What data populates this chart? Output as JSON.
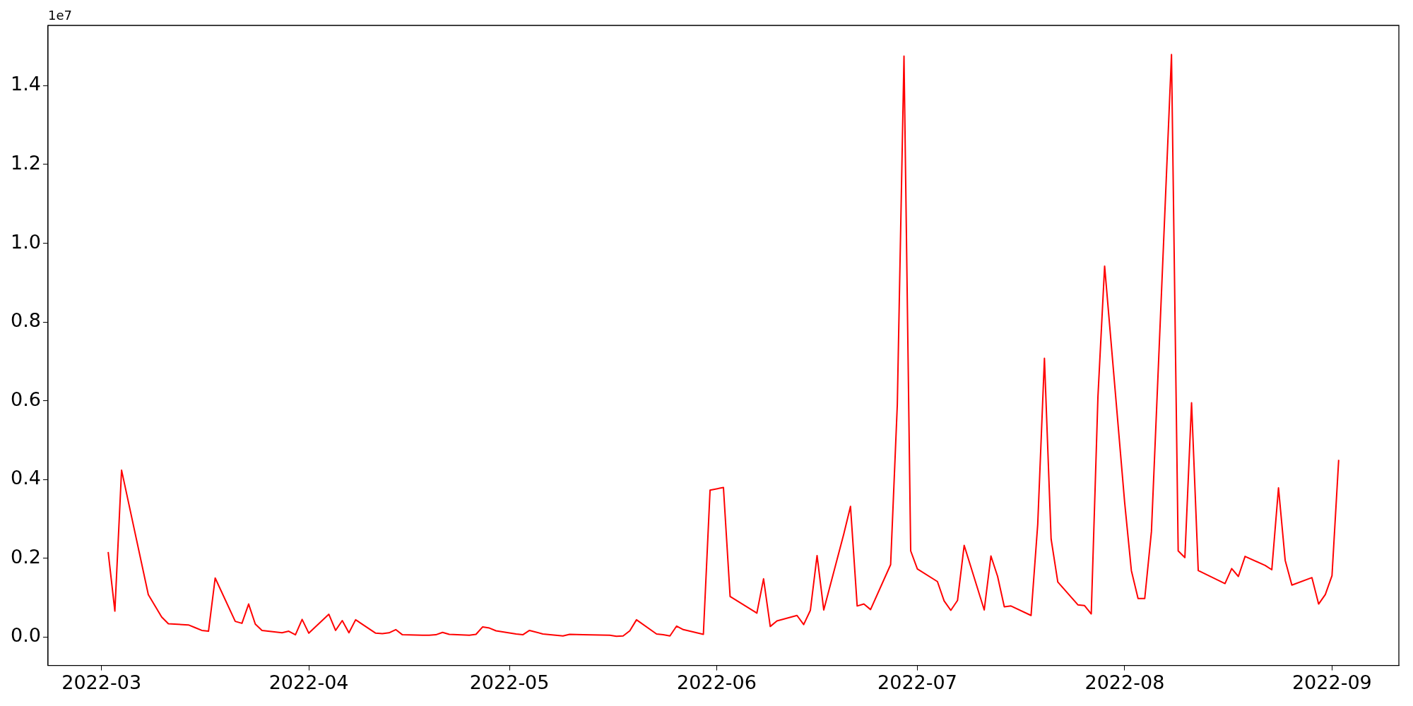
{
  "chart_data": {
    "type": "line",
    "x": [
      "2022-03-02",
      "2022-03-03",
      "2022-03-04",
      "2022-03-08",
      "2022-03-10",
      "2022-03-11",
      "2022-03-14",
      "2022-03-15",
      "2022-03-16",
      "2022-03-17",
      "2022-03-18",
      "2022-03-21",
      "2022-03-22",
      "2022-03-23",
      "2022-03-24",
      "2022-03-25",
      "2022-03-28",
      "2022-03-29",
      "2022-03-30",
      "2022-03-31",
      "2022-04-01",
      "2022-04-04",
      "2022-04-05",
      "2022-04-06",
      "2022-04-07",
      "2022-04-08",
      "2022-04-11",
      "2022-04-12",
      "2022-04-13",
      "2022-04-14",
      "2022-04-15",
      "2022-04-18",
      "2022-04-19",
      "2022-04-20",
      "2022-04-21",
      "2022-04-22",
      "2022-04-25",
      "2022-04-26",
      "2022-04-27",
      "2022-04-28",
      "2022-04-29",
      "2022-05-02",
      "2022-05-03",
      "2022-05-04",
      "2022-05-06",
      "2022-05-09",
      "2022-05-10",
      "2022-05-12",
      "2022-05-16",
      "2022-05-17",
      "2022-05-18",
      "2022-05-19",
      "2022-05-20",
      "2022-05-23",
      "2022-05-24",
      "2022-05-25",
      "2022-05-26",
      "2022-05-27",
      "2022-05-30",
      "2022-05-31",
      "2022-06-02",
      "2022-06-03",
      "2022-06-07",
      "2022-06-08",
      "2022-06-09",
      "2022-06-10",
      "2022-06-13",
      "2022-06-14",
      "2022-06-15",
      "2022-06-16",
      "2022-06-17",
      "2022-06-20",
      "2022-06-21",
      "2022-06-22",
      "2022-06-23",
      "2022-06-24",
      "2022-06-27",
      "2022-06-28",
      "2022-06-29",
      "2022-06-30",
      "2022-07-01",
      "2022-07-04",
      "2022-07-05",
      "2022-07-06",
      "2022-07-07",
      "2022-07-08",
      "2022-07-11",
      "2022-07-12",
      "2022-07-13",
      "2022-07-14",
      "2022-07-15",
      "2022-07-18",
      "2022-07-19",
      "2022-07-20",
      "2022-07-21",
      "2022-07-22",
      "2022-07-25",
      "2022-07-26",
      "2022-07-27",
      "2022-07-28",
      "2022-07-29",
      "2022-08-01",
      "2022-08-02",
      "2022-08-03",
      "2022-08-04",
      "2022-08-05",
      "2022-08-08",
      "2022-08-09",
      "2022-08-10",
      "2022-08-11",
      "2022-08-12",
      "2022-08-16",
      "2022-08-17",
      "2022-08-18",
      "2022-08-19",
      "2022-08-22",
      "2022-08-23",
      "2022-08-24",
      "2022-08-25",
      "2022-08-26",
      "2022-08-29",
      "2022-08-30",
      "2022-08-31",
      "2022-09-01",
      "2022-09-02"
    ],
    "series": [
      {
        "color": "#ff0000",
        "values": [
          0.216,
          0.066,
          0.424,
          0.108,
          0.051,
          0.034,
          0.031,
          0.024,
          0.017,
          0.015,
          0.15,
          0.04,
          0.035,
          0.084,
          0.033,
          0.017,
          0.011,
          0.015,
          0.006,
          0.045,
          0.01,
          0.058,
          0.017,
          0.042,
          0.011,
          0.044,
          0.01,
          0.009,
          0.011,
          0.019,
          0.006,
          0.005,
          0.005,
          0.006,
          0.012,
          0.007,
          0.005,
          0.007,
          0.026,
          0.023,
          0.016,
          0.008,
          0.006,
          0.017,
          0.008,
          0.003,
          0.007,
          0.006,
          0.005,
          0.002,
          0.003,
          0.016,
          0.044,
          0.008,
          0.006,
          0.003,
          0.028,
          0.019,
          0.007,
          0.373,
          0.38,
          0.103,
          0.061,
          0.148,
          0.027,
          0.041,
          0.055,
          0.032,
          0.068,
          0.207,
          0.069,
          0.262,
          0.332,
          0.079,
          0.084,
          0.07,
          0.184,
          0.59,
          1.475,
          0.219,
          0.173,
          0.141,
          0.092,
          0.068,
          0.093,
          0.233,
          0.069,
          0.206,
          0.154,
          0.077,
          0.079,
          0.055,
          0.287,
          0.708,
          0.249,
          0.14,
          0.082,
          0.08,
          0.059,
          0.61,
          0.942,
          0.341,
          0.169,
          0.098,
          0.098,
          0.268,
          1.479,
          0.219,
          0.202,
          0.595,
          0.169,
          0.136,
          0.174,
          0.154,
          0.205,
          0.182,
          0.171,
          0.379,
          0.195,
          0.132,
          0.151,
          0.084,
          0.108,
          0.156,
          0.45
        ]
      }
    ],
    "xlim": [
      "2022-02-21",
      "2022-09-11"
    ],
    "xticks": [
      "2022-03",
      "2022-04",
      "2022-05",
      "2022-06",
      "2022-07",
      "2022-08",
      "2022-09"
    ],
    "ylim": [
      -0.072,
      1.553
    ],
    "yticks": [
      {
        "value": 0,
        "label": "0.0"
      },
      0.2,
      0.4,
      0.6,
      0.8,
      {
        "value": 1,
        "label": "1.0"
      },
      1.2,
      1.4
    ],
    "annotations": [
      "1e7"
    ],
    "grid": false,
    "legend": false
  }
}
